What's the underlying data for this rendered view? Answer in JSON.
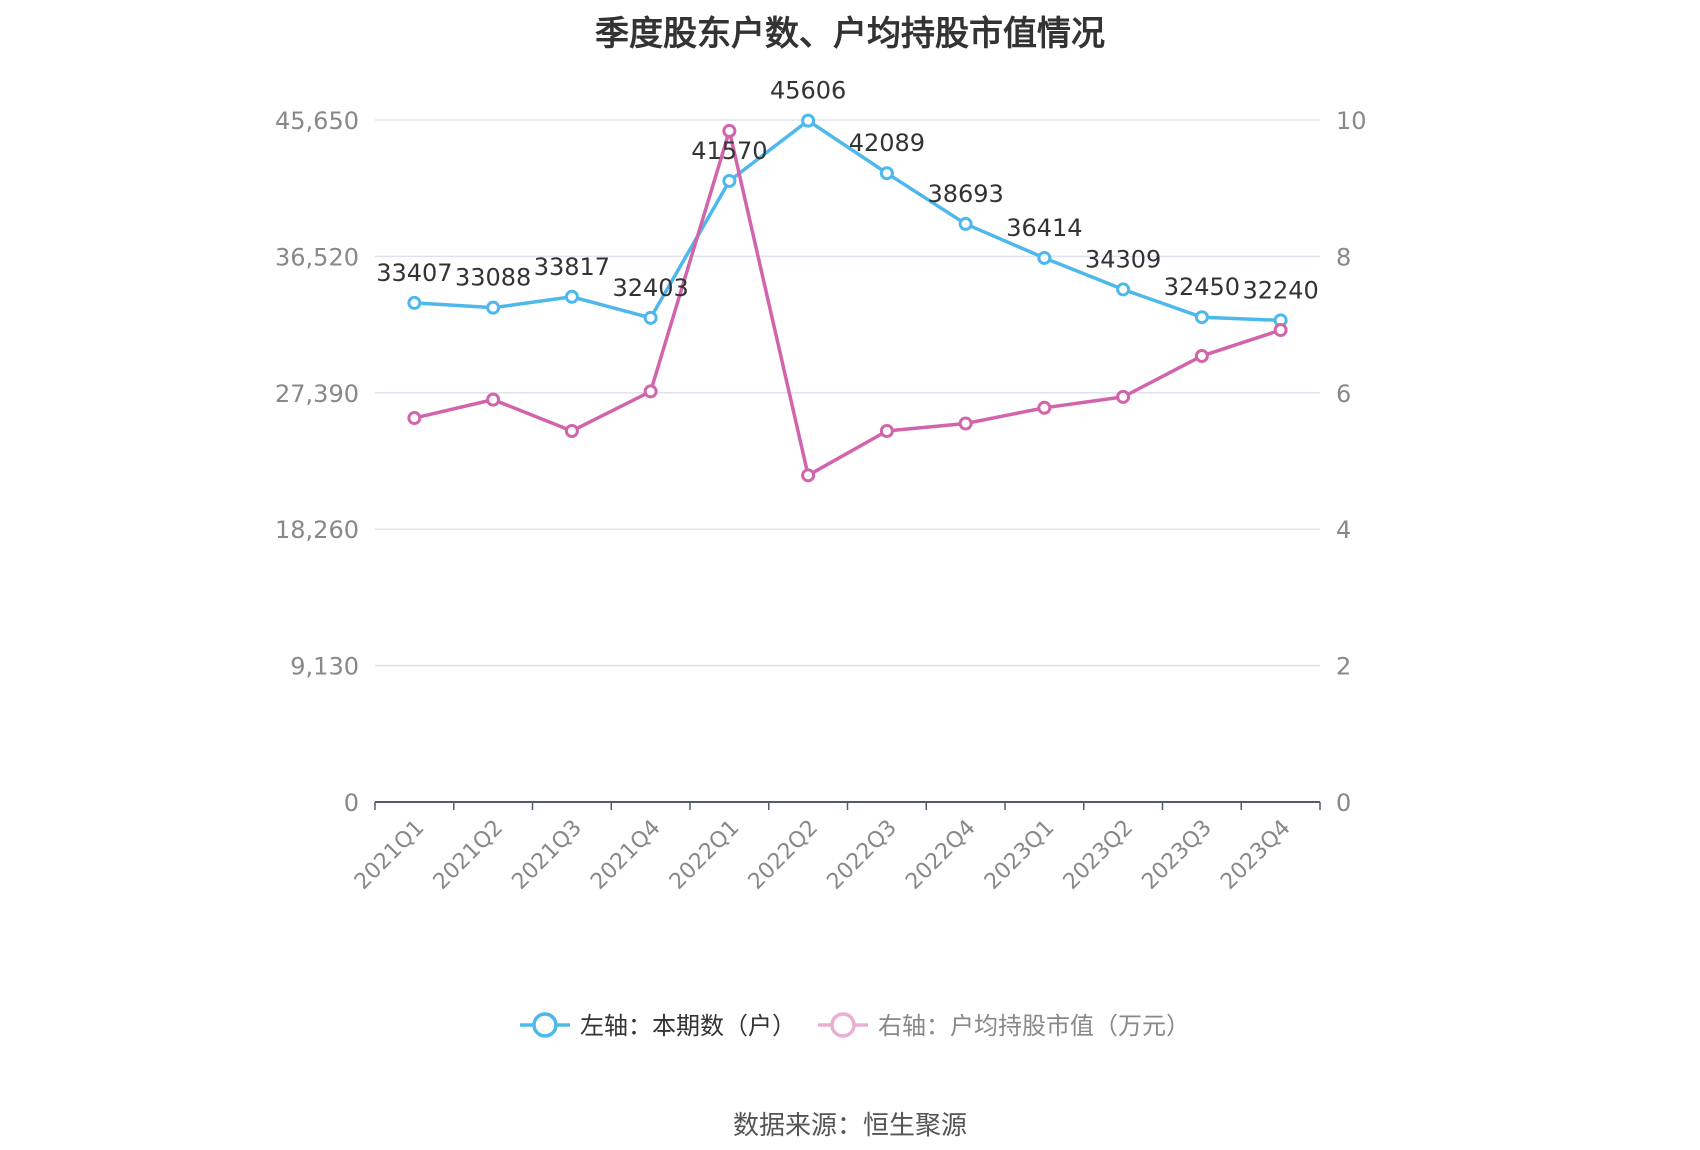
{
  "chart_data": {
    "type": "line",
    "title": "季度股东户数、户均持股市值情况",
    "categories": [
      "2021Q1",
      "2021Q2",
      "2021Q3",
      "2021Q4",
      "2022Q1",
      "2022Q2",
      "2022Q3",
      "2022Q4",
      "2023Q1",
      "2023Q2",
      "2023Q3",
      "2023Q4"
    ],
    "y_left": {
      "ticks": [
        "0",
        "9,130",
        "18,260",
        "27,390",
        "36,520",
        "45,650"
      ],
      "ylim": [
        0,
        45650
      ]
    },
    "y_right": {
      "ticks": [
        "0",
        "2",
        "4",
        "6",
        "8",
        "10"
      ],
      "ylim": [
        0,
        10
      ]
    },
    "series": [
      {
        "name": "左轴：本期数（户）",
        "axis": "left",
        "color": "#4db8ec",
        "values": [
          33407,
          33088,
          33817,
          32403,
          41570,
          45606,
          42089,
          38693,
          36414,
          34309,
          32450,
          32240
        ],
        "labels": [
          "33407",
          "33088",
          "33817",
          "32403",
          "41570",
          "45606",
          "42089",
          "38693",
          "36414",
          "34309",
          "32450",
          "32240"
        ]
      },
      {
        "name": "右轴：户均持股市值（万元）",
        "axis": "right",
        "color": "#d264ac",
        "values": [
          5.63,
          5.9,
          5.44,
          6.02,
          9.84,
          4.79,
          5.44,
          5.55,
          5.78,
          5.94,
          6.54,
          6.92
        ]
      }
    ],
    "grid": true,
    "legend": "bottom"
  },
  "source": "数据来源：恒生聚源"
}
